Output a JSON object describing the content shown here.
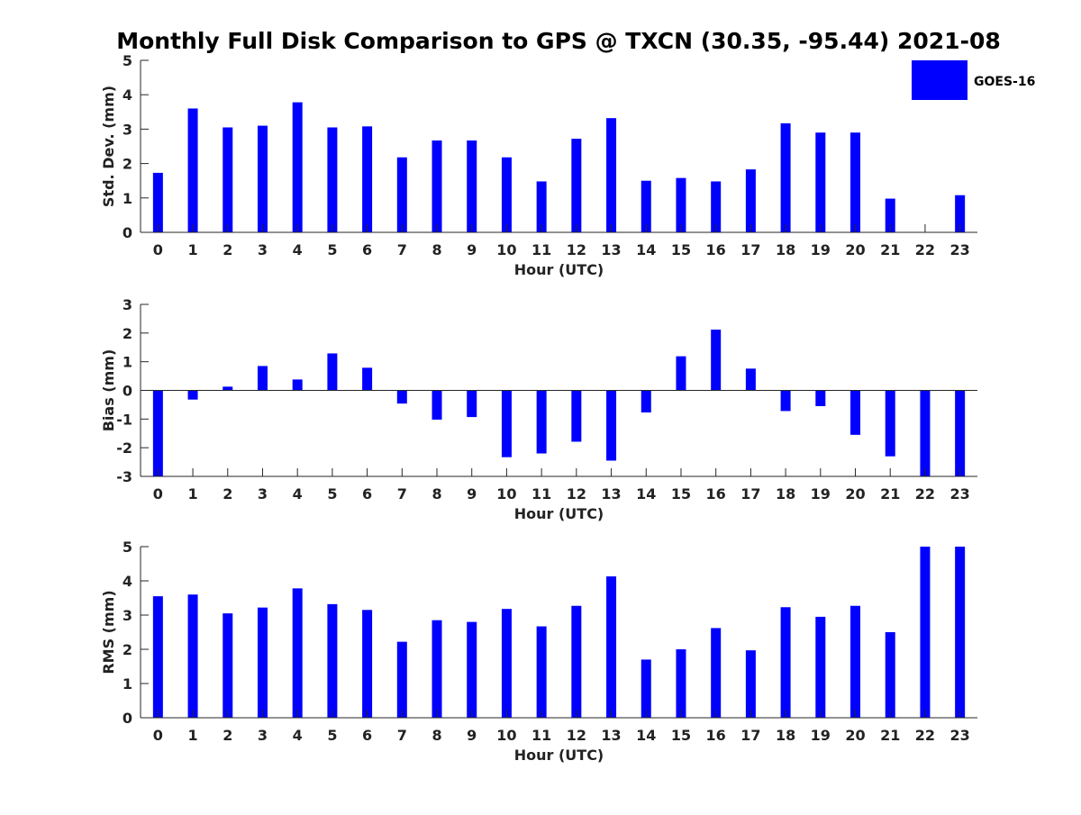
{
  "figure": {
    "title": "Monthly Full Disk Comparison to GPS @ TXCN (30.35, -95.44) 2021-08"
  },
  "legend": {
    "label": "GOES-16",
    "color": "#0000ff",
    "placement": "top-right"
  },
  "chart_data": [
    {
      "type": "bar",
      "name": "std-dev",
      "title": "Monthly Full Disk Comparison to GPS @ TXCN (30.35, -95.44) 2021-08",
      "xlabel": "Hour (UTC)",
      "ylabel": "Std. Dev. (mm)",
      "ylim": [
        0,
        5
      ],
      "yticks": [
        0,
        1,
        2,
        3,
        4,
        5
      ],
      "categories": [
        "0",
        "1",
        "2",
        "3",
        "4",
        "5",
        "6",
        "7",
        "8",
        "9",
        "10",
        "11",
        "12",
        "13",
        "14",
        "15",
        "16",
        "17",
        "18",
        "19",
        "20",
        "21",
        "22",
        "23"
      ],
      "series": [
        {
          "name": "GOES-16",
          "color": "#0000ff",
          "values": [
            1.73,
            3.6,
            3.05,
            3.1,
            3.78,
            3.05,
            3.08,
            2.18,
            2.67,
            2.67,
            2.18,
            1.48,
            2.72,
            3.32,
            1.5,
            1.58,
            1.48,
            1.83,
            3.17,
            2.9,
            2.9,
            0.98,
            0.0,
            1.08
          ]
        }
      ],
      "legend": "top-right",
      "grid": false
    },
    {
      "type": "bar",
      "name": "bias",
      "xlabel": "Hour (UTC)",
      "ylabel": "Bias (mm)",
      "ylim": [
        -3,
        3
      ],
      "yticks": [
        -3,
        -2,
        -1,
        0,
        1,
        2,
        3
      ],
      "categories": [
        "0",
        "1",
        "2",
        "3",
        "4",
        "5",
        "6",
        "7",
        "8",
        "9",
        "10",
        "11",
        "12",
        "13",
        "14",
        "15",
        "16",
        "17",
        "18",
        "19",
        "20",
        "21",
        "22",
        "23"
      ],
      "series": [
        {
          "name": "GOES-16",
          "color": "#0000ff",
          "values": [
            -3.0,
            -0.32,
            0.13,
            0.85,
            0.38,
            1.29,
            0.79,
            -0.46,
            -1.02,
            -0.93,
            -2.33,
            -2.2,
            -1.79,
            -2.45,
            -0.77,
            1.19,
            2.12,
            0.76,
            -0.72,
            -0.55,
            -1.55,
            -2.3,
            -3.0,
            -3.0
          ]
        }
      ],
      "grid": false
    },
    {
      "type": "bar",
      "name": "rms",
      "xlabel": "Hour (UTC)",
      "ylabel": "RMS (mm)",
      "ylim": [
        0,
        5
      ],
      "yticks": [
        0,
        1,
        2,
        3,
        4,
        5
      ],
      "categories": [
        "0",
        "1",
        "2",
        "3",
        "4",
        "5",
        "6",
        "7",
        "8",
        "9",
        "10",
        "11",
        "12",
        "13",
        "14",
        "15",
        "16",
        "17",
        "18",
        "19",
        "20",
        "21",
        "22",
        "23"
      ],
      "series": [
        {
          "name": "GOES-16",
          "color": "#0000ff",
          "values": [
            3.55,
            3.6,
            3.05,
            3.22,
            3.78,
            3.32,
            3.15,
            2.22,
            2.85,
            2.8,
            3.18,
            2.67,
            3.27,
            4.13,
            1.7,
            2.0,
            2.62,
            1.97,
            3.23,
            2.95,
            3.27,
            2.5,
            5.0,
            5.0
          ]
        }
      ],
      "grid": false
    }
  ]
}
